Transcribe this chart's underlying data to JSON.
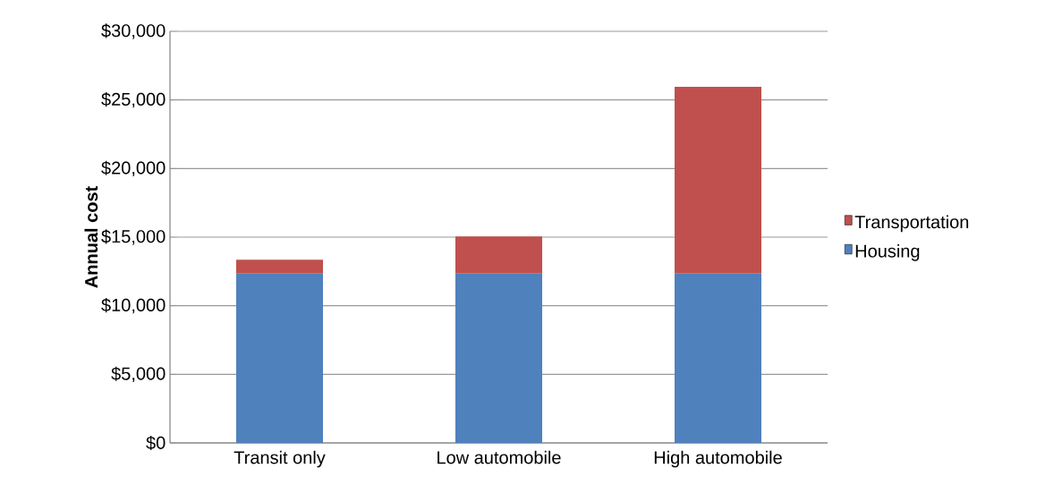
{
  "chart_data": {
    "type": "bar",
    "stacked": true,
    "ylabel": "Annual cost",
    "categories": [
      "Transit only",
      "Low automobile",
      "High automobile"
    ],
    "series": [
      {
        "name": "Housing",
        "color": "#4f81bd",
        "values": [
          12350,
          12350,
          12350
        ]
      },
      {
        "name": "Transportation",
        "color": "#c0504d",
        "values": [
          1000,
          2700,
          13600
        ]
      }
    ],
    "ylim": [
      0,
      30000
    ],
    "yticks": [
      {
        "value": 0,
        "label": "$0"
      },
      {
        "value": 5000,
        "label": "$5,000"
      },
      {
        "value": 10000,
        "label": "$10,000"
      },
      {
        "value": 15000,
        "label": "$15,000"
      },
      {
        "value": 20000,
        "label": "$20,000"
      },
      {
        "value": 25000,
        "label": "$25,000"
      },
      {
        "value": 30000,
        "label": "$30,000"
      }
    ],
    "grid": "y",
    "legend": "right"
  }
}
